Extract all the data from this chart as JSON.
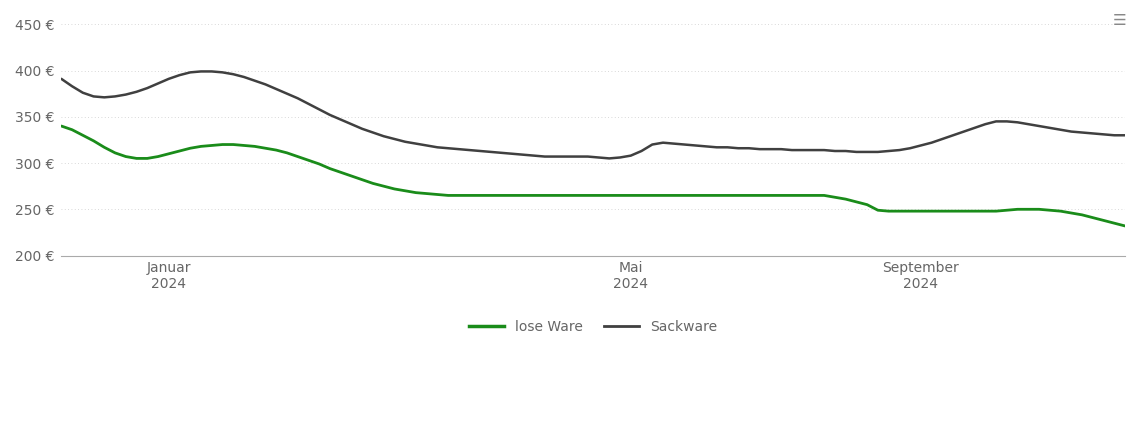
{
  "background_color": "#ffffff",
  "line_color_lose": "#1a8c1a",
  "line_color_sack": "#404040",
  "grid_color": "#cccccc",
  "axis_color": "#aaaaaa",
  "text_color": "#666666",
  "ylim": [
    200,
    460
  ],
  "yticks": [
    200,
    250,
    300,
    350,
    400,
    450
  ],
  "x_tick_labels": [
    "Januar\n2024",
    "Mai\n2024",
    "September\n2024"
  ],
  "legend_labels": [
    "lose Ware",
    "Sackware"
  ],
  "lose_ware": [
    340,
    336,
    330,
    324,
    317,
    311,
    307,
    305,
    305,
    307,
    310,
    313,
    316,
    318,
    319,
    320,
    320,
    319,
    318,
    316,
    314,
    311,
    307,
    303,
    299,
    294,
    290,
    286,
    282,
    278,
    275,
    272,
    270,
    268,
    267,
    266,
    265,
    265,
    265,
    265,
    265,
    265,
    265,
    265,
    265,
    265,
    265,
    265,
    265,
    265,
    265,
    265,
    265,
    265,
    265,
    265,
    265,
    265,
    265,
    265,
    265,
    265,
    265,
    265,
    265,
    265,
    265,
    265,
    265,
    265,
    265,
    265,
    263,
    261,
    258,
    255,
    249,
    248,
    248,
    248,
    248,
    248,
    248,
    248,
    248,
    248,
    248,
    248,
    249,
    250,
    250,
    250,
    249,
    248,
    246,
    244,
    241,
    238,
    235,
    232
  ],
  "sack_ware": [
    391,
    383,
    376,
    372,
    371,
    372,
    374,
    377,
    381,
    386,
    391,
    395,
    398,
    399,
    399,
    398,
    396,
    393,
    389,
    385,
    380,
    375,
    370,
    364,
    358,
    352,
    347,
    342,
    337,
    333,
    329,
    326,
    323,
    321,
    319,
    317,
    316,
    315,
    314,
    313,
    312,
    311,
    310,
    309,
    308,
    307,
    307,
    307,
    307,
    307,
    306,
    305,
    306,
    308,
    313,
    320,
    322,
    321,
    320,
    319,
    318,
    317,
    317,
    316,
    316,
    315,
    315,
    315,
    314,
    314,
    314,
    314,
    313,
    313,
    312,
    312,
    312,
    313,
    314,
    316,
    319,
    322,
    326,
    330,
    334,
    338,
    342,
    345,
    345,
    344,
    342,
    340,
    338,
    336,
    334,
    333,
    332,
    331,
    330,
    330
  ],
  "jan_idx": 10,
  "mai_idx": 53,
  "sep_idx": 80
}
